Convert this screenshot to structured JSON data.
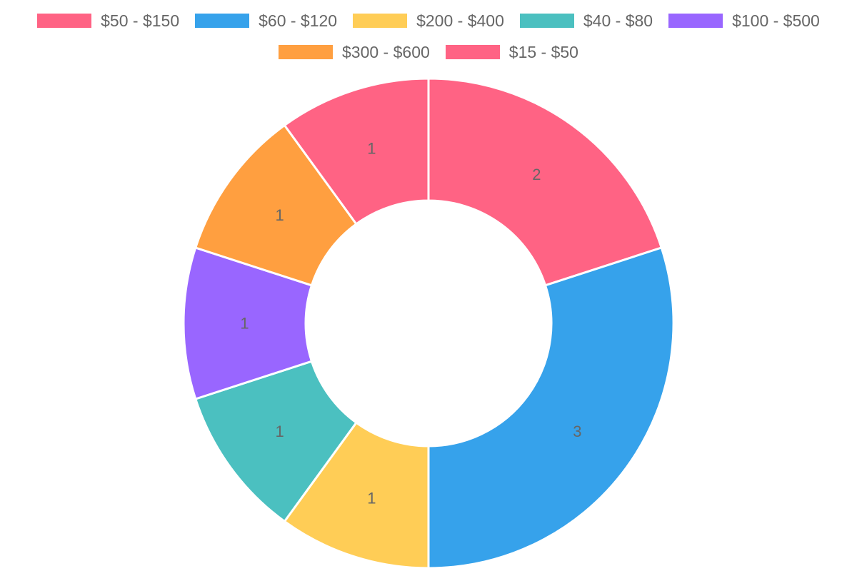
{
  "chart_data": {
    "type": "pie",
    "variant": "doughnut",
    "legend_position": "top",
    "categories": [
      "$50 - $150",
      "$60 - $120",
      "$200 - $400",
      "$40 - $80",
      "$100 - $500",
      "$300 - $600",
      "$15 - $50"
    ],
    "values": [
      2,
      3,
      1,
      1,
      1,
      1,
      1
    ],
    "colors": [
      "#ff6384",
      "#36a2eb",
      "#ffcd56",
      "#4bc0c0",
      "#9966ff",
      "#ff9f40",
      "#ff6384"
    ]
  }
}
